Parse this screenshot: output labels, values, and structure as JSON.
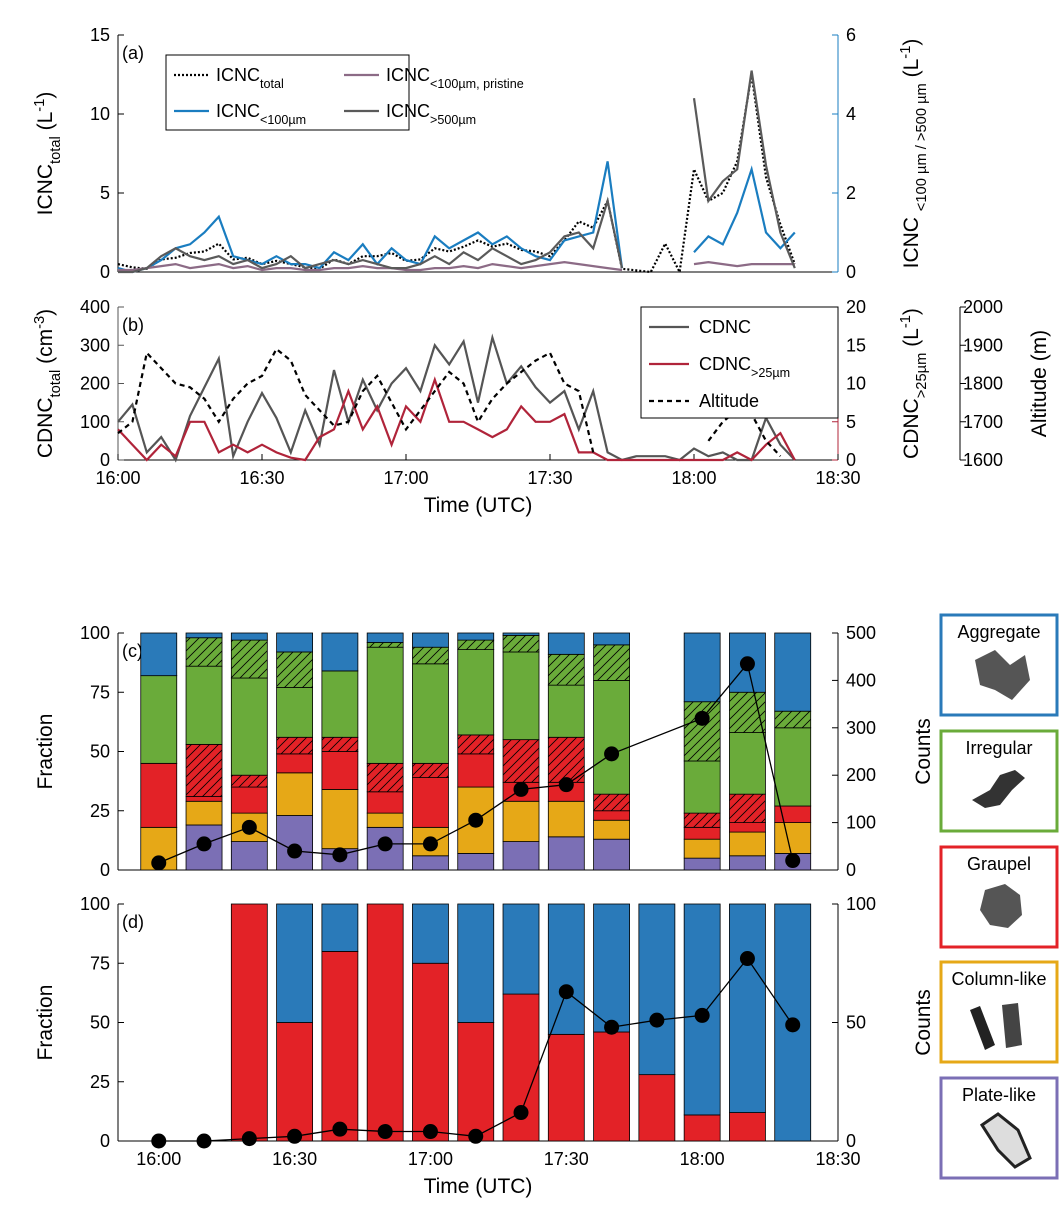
{
  "chart_data": [
    {
      "type": "line",
      "panel_label": "(a)",
      "ylabel": [
        {
          "t": "ICNC"
        },
        {
          "sub": "total"
        },
        {
          "t": " (L"
        },
        {
          "sup": "-1"
        },
        {
          "t": ")"
        }
      ],
      "y2label": [
        {
          "t": "ICNC "
        },
        {
          "sub": "<100 µm / >500 µm"
        },
        {
          "t": " (L"
        },
        {
          "sup": "-1"
        },
        {
          "t": ")"
        }
      ],
      "y_color": "#000000",
      "y2_color": "#1a7dc0",
      "legend": "top-left",
      "xlim": [
        960,
        1110
      ],
      "ylim": [
        0,
        15
      ],
      "yticks": [
        0,
        5,
        10,
        15
      ],
      "y2lim": [
        0,
        6
      ],
      "y2ticks": [
        0,
        2,
        4,
        6
      ],
      "x": [
        960,
        963,
        966,
        969,
        972,
        975,
        978,
        981,
        984,
        987,
        990,
        993,
        996,
        999,
        1002,
        1005,
        1008,
        1011,
        1014,
        1017,
        1020,
        1023,
        1026,
        1029,
        1032,
        1035,
        1038,
        1041,
        1044,
        1047,
        1050,
        1053,
        1056,
        1059,
        1062,
        1065,
        1068,
        1071,
        1074,
        1077,
        1080,
        1083,
        1086,
        1089,
        1092,
        1095,
        1098,
        1101
      ],
      "series": [
        {
          "name": [
            {
              "t": "ICNC"
            },
            {
              "sub": "total"
            }
          ],
          "color": "#000000",
          "dash": "dotted",
          "values": [
            0.5,
            0.3,
            0.2,
            0.8,
            0.9,
            1.2,
            1.3,
            1.8,
            0.8,
            0.9,
            0.5,
            0.7,
            0.5,
            0.3,
            0.2,
            0.8,
            0.5,
            1.0,
            1.0,
            1.2,
            0.7,
            0.8,
            1.5,
            1.3,
            1.6,
            2.0,
            1.6,
            1.8,
            1.4,
            1.3,
            1.0,
            2.0,
            3.2,
            2.8,
            4.5,
            0.2,
            0.1,
            0,
            1.8,
            0,
            6.5,
            4.5,
            5.0,
            7.0,
            12.5,
            6.0,
            3.0,
            0.5
          ]
        },
        {
          "name": [
            {
              "t": "ICNC"
            },
            {
              "sub": "<100µm"
            }
          ],
          "color": "#1a7dc0",
          "axis": "y2",
          "values": [
            0.1,
            0,
            0.1,
            0.3,
            0.6,
            0.7,
            1.0,
            1.4,
            0.4,
            0.3,
            0.2,
            0.4,
            0.2,
            0.2,
            0.1,
            0.5,
            0.3,
            0.7,
            0.2,
            0.6,
            0.3,
            0.2,
            0.9,
            0.6,
            0.8,
            1.0,
            0.7,
            0.9,
            0.6,
            0.4,
            0.3,
            0.8,
            0.9,
            1.0,
            2.8,
            0.1,
            null,
            null,
            null,
            null,
            0.5,
            0.9,
            0.7,
            1.5,
            2.6,
            1.0,
            0.6,
            1.0
          ]
        },
        {
          "name": [
            {
              "t": "ICNC"
            },
            {
              "sub": "<100µm, pristine"
            }
          ],
          "color": "#8c6b86",
          "axis": "y2",
          "values": [
            0.05,
            0.05,
            0.1,
            0.15,
            0.2,
            0.1,
            0.15,
            0.2,
            0.1,
            0.15,
            0.05,
            0.1,
            0.1,
            0.05,
            0.05,
            0.1,
            0.1,
            0.15,
            0.1,
            0.1,
            0.05,
            0.05,
            0.1,
            0.1,
            0.15,
            0.1,
            0.2,
            0.15,
            0.1,
            0.15,
            0.2,
            0.25,
            0.2,
            0.15,
            0.1,
            0.05,
            null,
            null,
            null,
            null,
            0.2,
            0.25,
            0.2,
            0.15,
            0.2,
            0.2,
            0.2,
            0.2
          ]
        },
        {
          "name": [
            {
              "t": "ICNC"
            },
            {
              "sub": ">500µm"
            }
          ],
          "color": "#5a5a5a",
          "axis": "y2",
          "values": [
            0,
            0,
            0.1,
            0.4,
            0.6,
            0.4,
            0.3,
            0.4,
            0.2,
            0.3,
            0.1,
            0.2,
            0.4,
            0.1,
            0.2,
            0.3,
            0.2,
            0.3,
            0.2,
            0.1,
            0.1,
            0.2,
            0.4,
            0.2,
            0.5,
            0.3,
            0.6,
            0.4,
            0.2,
            0.3,
            0.5,
            0.9,
            1.0,
            0.6,
            1.8,
            0.1,
            null,
            null,
            null,
            null,
            4.4,
            1.8,
            2.3,
            2.6,
            5.1,
            2.7,
            1.0,
            0.1
          ]
        }
      ]
    },
    {
      "type": "line",
      "panel_label": "(b)",
      "ylabel": [
        {
          "t": "CDNC"
        },
        {
          "sub": "total"
        },
        {
          "t": " (cm"
        },
        {
          "sup": "-3"
        },
        {
          "t": ")"
        }
      ],
      "y2label": [
        {
          "t": "CDNC"
        },
        {
          "sub": ">25µm"
        },
        {
          "t": " (L"
        },
        {
          "sup": "-1"
        },
        {
          "t": ")"
        }
      ],
      "y3label": "Altitude (m)",
      "xlabel": "Time (UTC)",
      "y_color": "#555555",
      "y2_color": "#b0243a",
      "y3_color": "#000000",
      "legend": "top-right",
      "xlim": [
        960,
        1110
      ],
      "xticks": [
        {
          "value": 960,
          "label": "16:00"
        },
        {
          "value": 990,
          "label": "16:30"
        },
        {
          "value": 1020,
          "label": "17:00"
        },
        {
          "value": 1050,
          "label": "17:30"
        },
        {
          "value": 1080,
          "label": "18:00"
        },
        {
          "value": 1110,
          "label": "18:30"
        }
      ],
      "ylim": [
        0,
        400
      ],
      "yticks": [
        0,
        100,
        200,
        300,
        400
      ],
      "y2lim": [
        0,
        20
      ],
      "y2ticks": [
        0,
        5,
        10,
        15,
        20
      ],
      "y3lim": [
        1600,
        2000
      ],
      "y3ticks": [
        1600,
        1700,
        1800,
        1900,
        2000
      ],
      "x": [
        960,
        963,
        966,
        969,
        972,
        975,
        978,
        981,
        984,
        987,
        990,
        993,
        996,
        999,
        1002,
        1005,
        1008,
        1011,
        1014,
        1017,
        1020,
        1023,
        1026,
        1029,
        1032,
        1035,
        1038,
        1041,
        1044,
        1047,
        1050,
        1053,
        1056,
        1059,
        1062,
        1065,
        1068,
        1071,
        1074,
        1077,
        1080,
        1083,
        1086,
        1089,
        1092,
        1095,
        1098,
        1101
      ],
      "series": [
        {
          "name": "CDNC",
          "color": "#555555",
          "values": [
            100,
            145,
            20,
            60,
            0,
            115,
            190,
            265,
            10,
            100,
            175,
            110,
            20,
            130,
            40,
            235,
            100,
            210,
            130,
            200,
            240,
            180,
            300,
            250,
            310,
            150,
            320,
            200,
            245,
            190,
            150,
            180,
            80,
            180,
            20,
            0,
            10,
            10,
            10,
            0,
            30,
            10,
            20,
            0,
            0,
            110,
            40,
            0
          ]
        },
        {
          "name": [
            {
              "t": "CDNC"
            },
            {
              "sub": ">25µm"
            }
          ],
          "color": "#b0243a",
          "axis": "y2",
          "values": [
            4,
            2,
            0,
            2,
            0.5,
            5,
            5,
            1,
            2,
            1,
            2,
            1,
            0.3,
            0,
            3,
            4,
            9,
            4,
            7,
            2,
            7,
            5,
            10.5,
            5,
            5,
            4,
            3,
            4,
            7,
            5,
            5,
            6,
            1,
            1,
            0,
            0,
            0,
            0,
            0,
            0,
            0,
            0,
            0,
            1,
            0,
            2,
            3.5,
            0
          ]
        },
        {
          "name": "Altitude",
          "color": "#000000",
          "dash": "dashed",
          "axis": "y3",
          "values": [
            1670,
            1700,
            1880,
            1840,
            1800,
            1790,
            1760,
            1700,
            1760,
            1800,
            1820,
            1890,
            1860,
            1770,
            1730,
            1690,
            1700,
            1780,
            1820,
            1750,
            1680,
            1730,
            1780,
            1830,
            1800,
            1700,
            1760,
            1800,
            1830,
            1860,
            1880,
            1800,
            1780,
            1620,
            null,
            null,
            null,
            null,
            null,
            null,
            null,
            1650,
            1700,
            1730,
            1720,
            1650,
            1610,
            null
          ]
        }
      ]
    },
    {
      "type": "bar",
      "stacked": true,
      "panel_label": "(c)",
      "ylabel": "Fraction",
      "y2label": "Counts",
      "xlim": [
        951,
        1110
      ],
      "ylim": [
        0,
        100
      ],
      "yticks": [
        0,
        25,
        50,
        75,
        100
      ],
      "y2lim": [
        0,
        500
      ],
      "y2ticks": [
        0,
        100,
        200,
        300,
        400,
        500
      ],
      "x": [
        960,
        970,
        980,
        990,
        1000,
        1010,
        1020,
        1030,
        1040,
        1050,
        1060,
        1070,
        1080,
        1090,
        1100
      ],
      "series": [
        {
          "name": "Plate-like",
          "color": "#7b6fb5",
          "values": [
            0,
            19,
            12,
            23,
            9,
            18,
            6,
            7,
            12,
            14,
            13,
            null,
            5,
            6,
            7
          ]
        },
        {
          "name": "Column-like",
          "color": "#e6a817",
          "values": [
            18,
            10,
            12,
            18,
            25,
            6,
            12,
            28,
            17,
            15,
            8,
            null,
            8,
            10,
            13
          ]
        },
        {
          "name": "Graupel",
          "color": "#e32227",
          "values": [
            27,
            2,
            11,
            8,
            16,
            9,
            21,
            14,
            8,
            8,
            4,
            null,
            5,
            4,
            7
          ]
        },
        {
          "color": "#e32227",
          "hatch": true,
          "values": [
            0,
            22,
            5,
            7,
            6,
            12,
            6,
            8,
            18,
            19,
            7,
            null,
            6,
            12,
            0
          ]
        },
        {
          "name": "Irregular",
          "color": "#6aab3a",
          "values": [
            37,
            33,
            41,
            21,
            28,
            49,
            42,
            36,
            37,
            22,
            48,
            null,
            22,
            26,
            33
          ]
        },
        {
          "color": "#6aab3a",
          "hatch": true,
          "values": [
            0,
            12,
            16,
            15,
            0,
            2,
            7,
            4,
            7,
            13,
            15,
            null,
            25,
            17,
            7
          ]
        },
        {
          "name": "Aggregate",
          "color": "#2a7ab9",
          "values": [
            18,
            2,
            3,
            8,
            16,
            4,
            6,
            3,
            1,
            9,
            5,
            null,
            29,
            25,
            33
          ]
        },
        {
          "type": "line",
          "axis": "y2",
          "color": "#000000",
          "x": [
            960,
            970,
            980,
            990,
            1000,
            1010,
            1020,
            1030,
            1040,
            1050,
            1060,
            1080,
            1090,
            1100
          ],
          "values": [
            15,
            55,
            90,
            40,
            32,
            55,
            55,
            105,
            170,
            180,
            245,
            320,
            435,
            20
          ]
        }
      ]
    },
    {
      "type": "bar",
      "stacked": true,
      "panel_label": "(d)",
      "ylabel": "Fraction",
      "y2label": "Counts",
      "xlabel": "Time (UTC)",
      "xlim": [
        951,
        1110
      ],
      "xticks": [
        {
          "value": 960,
          "label": "16:00"
        },
        {
          "value": 990,
          "label": "16:30"
        },
        {
          "value": 1020,
          "label": "17:00"
        },
        {
          "value": 1050,
          "label": "17:30"
        },
        {
          "value": 1080,
          "label": "18:00"
        },
        {
          "value": 1110,
          "label": "18:30"
        }
      ],
      "ylim": [
        0,
        100
      ],
      "yticks": [
        0,
        25,
        50,
        75,
        100
      ],
      "y2lim": [
        0,
        100
      ],
      "y2ticks": [
        0,
        50,
        100
      ],
      "x": [
        960,
        970,
        980,
        990,
        1000,
        1010,
        1020,
        1030,
        1040,
        1050,
        1060,
        1070,
        1080,
        1090,
        1100
      ],
      "series": [
        {
          "color": "#e32227",
          "values": [
            null,
            null,
            100,
            50,
            80,
            100,
            75,
            50,
            62,
            45,
            46,
            28,
            11,
            12,
            0
          ]
        },
        {
          "color": "#2a7ab9",
          "values": [
            null,
            null,
            0,
            50,
            20,
            0,
            25,
            50,
            38,
            55,
            54,
            72,
            89,
            88,
            100
          ]
        },
        {
          "type": "line",
          "axis": "y2",
          "color": "#000000",
          "values": [
            0,
            0,
            1,
            2,
            5,
            4,
            4,
            2,
            12,
            63,
            48,
            51,
            53,
            77,
            49
          ]
        }
      ]
    }
  ]
}
